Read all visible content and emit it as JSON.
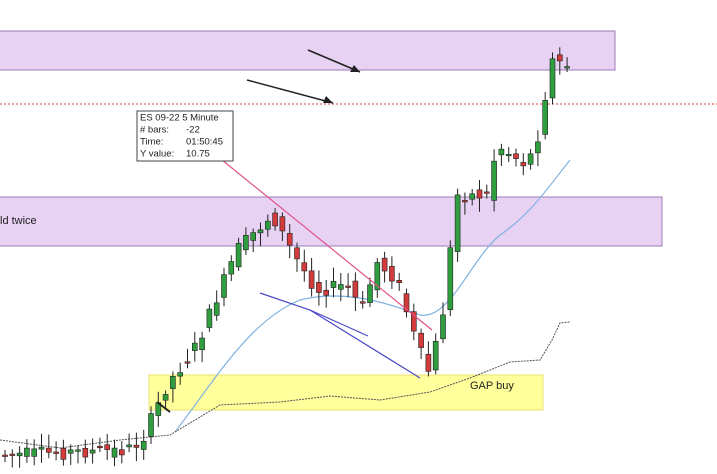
{
  "info_box": {
    "title": "ES 09-22 5 Minute",
    "rows": [
      {
        "label": "# bars:",
        "value": "-22"
      },
      {
        "label": "Time:",
        "value": "01:50:45"
      },
      {
        "label": "Y value:",
        "value": "10.75"
      }
    ]
  },
  "zones": {
    "middle_label": "ld twice",
    "gap_label": "GAP buy"
  }
}
